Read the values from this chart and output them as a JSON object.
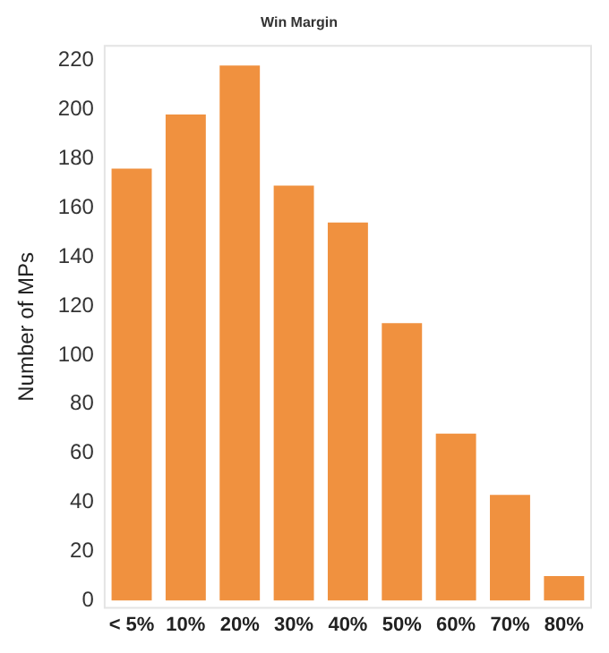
{
  "chart_data": {
    "type": "bar",
    "title": "Win Margin",
    "ylabel": "Number of MPs",
    "categories": [
      "< 5%",
      "10%",
      "20%",
      "30%",
      "40%",
      "50%",
      "60%",
      "70%",
      "80%"
    ],
    "values": [
      176,
      198,
      218,
      169,
      154,
      113,
      68,
      43,
      10
    ],
    "color": "#f0913f",
    "ylim": [
      -3,
      226
    ],
    "yticks": [
      0,
      20,
      40,
      60,
      80,
      100,
      120,
      140,
      160,
      180,
      200,
      220
    ],
    "grid": false
  }
}
